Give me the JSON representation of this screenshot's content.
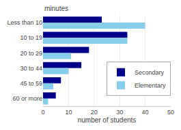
{
  "chart_data": {
    "type": "bar",
    "orientation": "horizontal",
    "categories": [
      "Less than 10",
      "10 to 19",
      "20 to 29",
      "30 to 44",
      "45 to 59",
      "60 or more"
    ],
    "series": [
      {
        "name": "Secondary",
        "color": "#00008B",
        "values": [
          23,
          33,
          18,
          15,
          7,
          5
        ]
      },
      {
        "name": "Elementary",
        "color": "#87CEEB",
        "values": [
          40,
          33,
          11,
          10,
          4,
          2
        ]
      }
    ],
    "xlabel": "number of students",
    "ylabel": "minutes",
    "xlim": [
      0,
      50
    ],
    "xticks": [
      0,
      10,
      20,
      30,
      40,
      50
    ],
    "grid": true,
    "legend": "right"
  }
}
